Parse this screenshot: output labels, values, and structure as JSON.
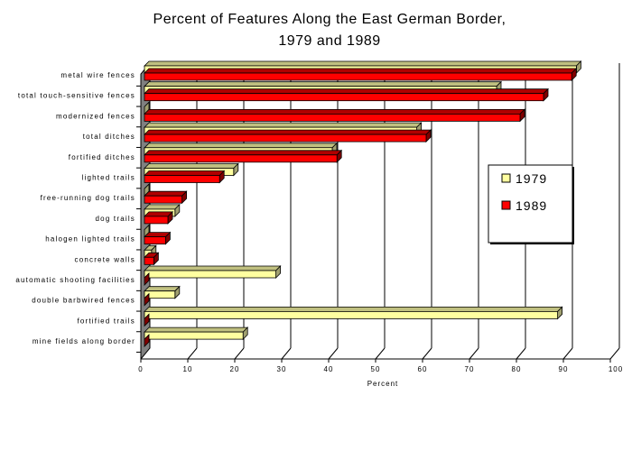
{
  "chart_data": {
    "type": "bar",
    "orientation": "horizontal",
    "style": "3d",
    "title": [
      "Percent of Features Along the East German Border,",
      "1979 and 1989"
    ],
    "xlabel": "Percent",
    "ylabel": "",
    "xlim": [
      0,
      100
    ],
    "xticks": [
      "0",
      "10",
      "20",
      "30",
      "40",
      "50",
      "60",
      "70",
      "80",
      "90",
      "100"
    ],
    "grid": "vertical lines",
    "legend_position": "right",
    "categories": [
      "metal wire fences",
      "total touch-sensitive fences",
      "modernized fences",
      "total ditches",
      "fortified ditches",
      "lighted trails",
      "free-running dog trails",
      "dog trails",
      "halogen lighted trails",
      "concrete walls",
      "automatic shooting facilities",
      "double barbwired fences",
      "fortified trails",
      "mine fields along border"
    ],
    "series": [
      {
        "name": "1979",
        "color": "#ffffa0",
        "values": [
          92,
          75,
          0,
          58,
          40,
          19,
          0,
          6.5,
          0,
          1.5,
          28,
          6.5,
          88,
          21
        ]
      },
      {
        "name": "1989",
        "color": "#ff0000",
        "values": [
          91,
          85,
          80,
          60,
          41,
          16,
          8,
          5,
          4.5,
          2,
          0,
          0,
          0,
          0
        ]
      }
    ]
  }
}
